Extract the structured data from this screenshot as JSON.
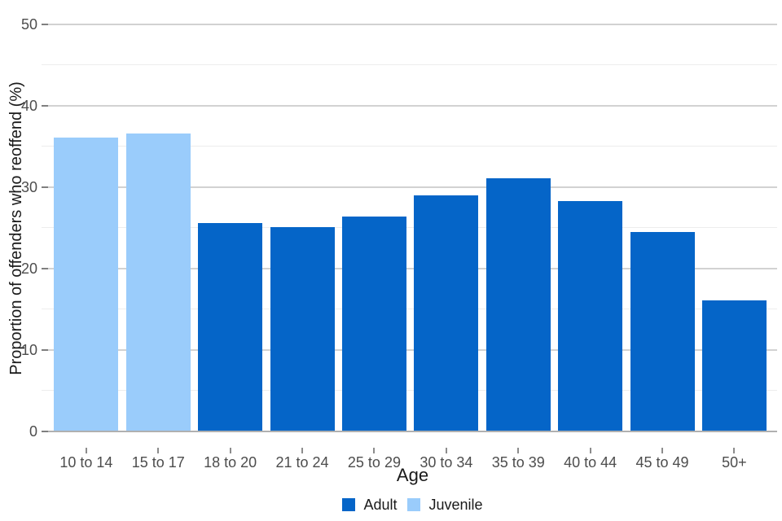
{
  "chart_data": {
    "type": "bar",
    "title": "",
    "xlabel": "Age",
    "ylabel": "Proportion of offenders who reoffend (%)",
    "categories": [
      "10 to 14",
      "15 to 17",
      "18 to 20",
      "21 to 24",
      "25 to 29",
      "30 to 34",
      "35 to 39",
      "40 to 44",
      "45 to 49",
      "50+"
    ],
    "values": [
      36.1,
      36.6,
      25.6,
      25.1,
      26.4,
      29.0,
      31.1,
      28.3,
      24.5,
      16.1
    ],
    "bar_series": [
      "Juvenile",
      "Juvenile",
      "Adult",
      "Adult",
      "Adult",
      "Adult",
      "Adult",
      "Adult",
      "Adult",
      "Adult"
    ],
    "series": [
      {
        "name": "Adult",
        "color": "#0565c8",
        "values": [
          null,
          null,
          25.6,
          25.1,
          26.4,
          29.0,
          31.1,
          28.3,
          24.5,
          16.1
        ]
      },
      {
        "name": "Juvenile",
        "color": "#9accfb",
        "values": [
          36.1,
          36.6,
          null,
          null,
          null,
          null,
          null,
          null,
          null,
          null
        ]
      }
    ],
    "ylim": [
      0,
      50
    ],
    "yticks_major": [
      0,
      10,
      20,
      30,
      40,
      50
    ],
    "yticks_minor": [
      5,
      15,
      25,
      35,
      45
    ],
    "grid": "horizontal",
    "legend_position": "bottom-center"
  },
  "colors": {
    "adult": "#0565c8",
    "juvenile": "#9accfb",
    "grid_major": "#d2d2d2",
    "grid_minor": "#ededed",
    "axis_line": "#b0b0b0",
    "tick_major": "#7f7f7f",
    "tick_x": "#8c8c8c",
    "tick_label": "#4d4d4d",
    "text": "#1a1a1a",
    "background": "#ffffff"
  }
}
